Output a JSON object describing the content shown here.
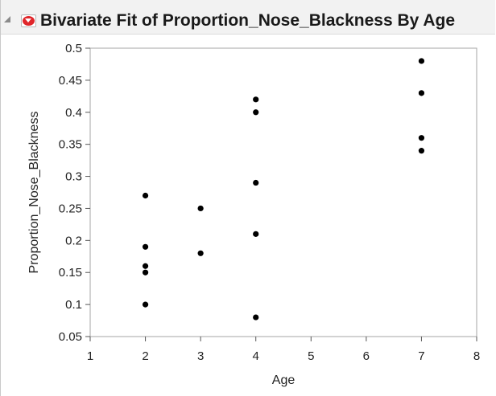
{
  "report": {
    "title": "Bivariate Fit of Proportion_Nose_Blackness By Age"
  },
  "chart_data": {
    "type": "scatter",
    "title": "",
    "xlabel": "Age",
    "ylabel": "Proportion_Nose_Blackness",
    "xlim": [
      1,
      8
    ],
    "ylim": [
      0.05,
      0.5
    ],
    "xticks": [
      1,
      2,
      3,
      4,
      5,
      6,
      7,
      8
    ],
    "yticks": [
      "0.05",
      "0.1",
      "0.15",
      "0.2",
      "0.25",
      "0.3",
      "0.35",
      "0.4",
      "0.45",
      "0.5"
    ],
    "grid": false,
    "point_color": "#000000",
    "points": [
      {
        "x": 2,
        "y": 0.27
      },
      {
        "x": 2,
        "y": 0.19
      },
      {
        "x": 2,
        "y": 0.16
      },
      {
        "x": 2,
        "y": 0.15
      },
      {
        "x": 2,
        "y": 0.1
      },
      {
        "x": 3,
        "y": 0.25
      },
      {
        "x": 3,
        "y": 0.18
      },
      {
        "x": 4,
        "y": 0.42
      },
      {
        "x": 4,
        "y": 0.4
      },
      {
        "x": 4,
        "y": 0.29
      },
      {
        "x": 4,
        "y": 0.21
      },
      {
        "x": 4,
        "y": 0.08
      },
      {
        "x": 7,
        "y": 0.48
      },
      {
        "x": 7,
        "y": 0.43
      },
      {
        "x": 7,
        "y": 0.36
      },
      {
        "x": 7,
        "y": 0.34
      }
    ]
  }
}
